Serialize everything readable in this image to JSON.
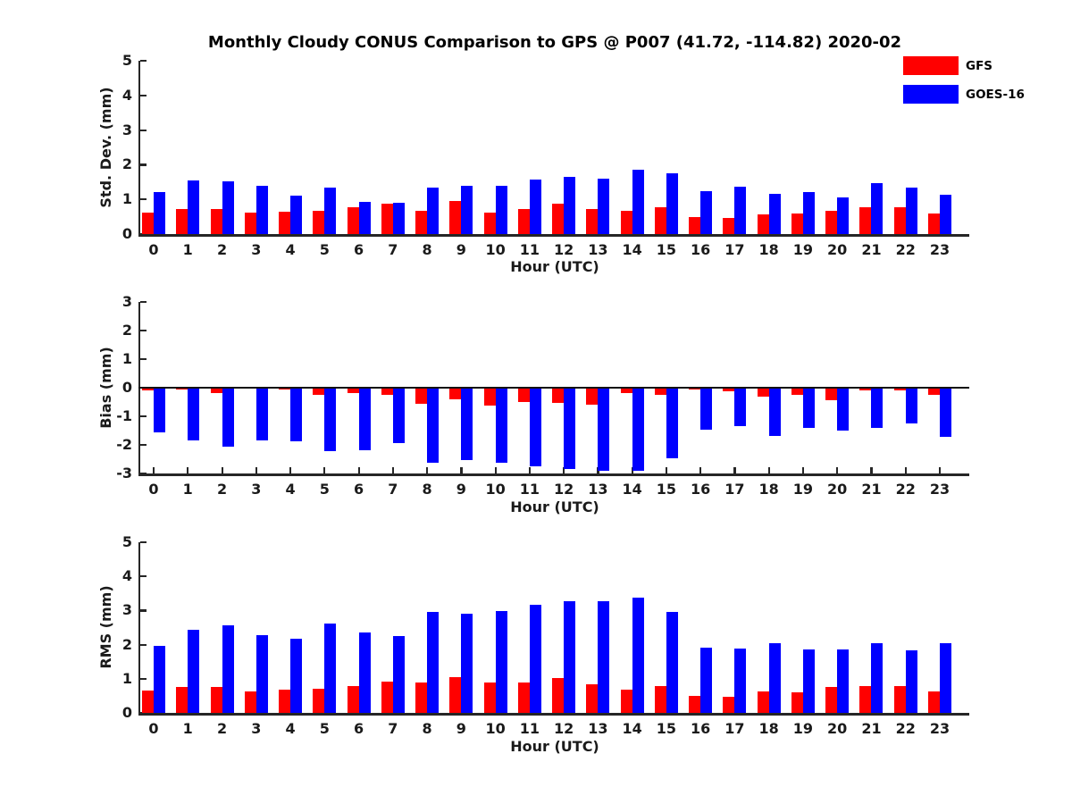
{
  "page": {
    "title": "Monthly Cloudy CONUS Comparison to GPS @ P007 (41.72, -114.82) 2020-02"
  },
  "legend": {
    "position": "top-right",
    "items": [
      {
        "label": "GFS",
        "color": "#ff0000"
      },
      {
        "label": "GOES-16",
        "color": "#0000ff"
      }
    ]
  },
  "colors": {
    "gfs": "#ff0000",
    "goes16": "#0000ff",
    "axis": "#262626",
    "background": "#ffffff"
  },
  "chart_data": [
    {
      "type": "bar",
      "name": "std-dev",
      "title": "",
      "ylabel": "Std. Dev. (mm)",
      "xlabel": "Hour (UTC)",
      "ylim": [
        0,
        5
      ],
      "yticks": [
        0,
        1,
        2,
        3,
        4,
        5
      ],
      "grid": false,
      "categories": [
        0,
        1,
        2,
        3,
        4,
        5,
        6,
        7,
        8,
        9,
        10,
        11,
        12,
        13,
        14,
        15,
        16,
        17,
        18,
        19,
        20,
        21,
        22,
        23
      ],
      "series": [
        {
          "name": "GFS",
          "color": "#ff0000",
          "values": [
            0.63,
            0.72,
            0.72,
            0.63,
            0.65,
            0.66,
            0.77,
            0.88,
            0.68,
            0.95,
            0.63,
            0.72,
            0.88,
            0.71,
            0.67,
            0.78,
            0.5,
            0.47,
            0.57,
            0.59,
            0.66,
            0.78,
            0.77,
            0.59
          ]
        },
        {
          "name": "GOES-16",
          "color": "#0000ff",
          "values": [
            1.2,
            1.55,
            1.52,
            1.4,
            1.1,
            1.35,
            0.92,
            0.9,
            1.33,
            1.38,
            1.38,
            1.58,
            1.65,
            1.6,
            1.85,
            1.75,
            1.25,
            1.36,
            1.16,
            1.2,
            1.06,
            1.47,
            1.35,
            1.13
          ]
        }
      ]
    },
    {
      "type": "bar",
      "name": "bias",
      "title": "",
      "ylabel": "Bias (mm)",
      "xlabel": "Hour (UTC)",
      "ylim": [
        -3,
        3
      ],
      "yticks": [
        -3,
        -2,
        -1,
        0,
        1,
        2,
        3
      ],
      "grid": false,
      "zero_line": true,
      "categories": [
        0,
        1,
        2,
        3,
        4,
        5,
        6,
        7,
        8,
        9,
        10,
        11,
        12,
        13,
        14,
        15,
        16,
        17,
        18,
        19,
        20,
        21,
        22,
        23
      ],
      "series": [
        {
          "name": "GFS",
          "color": "#ff0000",
          "values": [
            -0.1,
            -0.07,
            -0.2,
            -0.04,
            -0.05,
            -0.24,
            -0.2,
            -0.26,
            -0.55,
            -0.4,
            -0.63,
            -0.5,
            -0.53,
            -0.58,
            -0.19,
            -0.24,
            -0.06,
            -0.14,
            -0.31,
            -0.26,
            -0.43,
            -0.1,
            -0.1,
            -0.24
          ]
        },
        {
          "name": "GOES-16",
          "color": "#0000ff",
          "values": [
            -1.57,
            -1.85,
            -2.05,
            -1.85,
            -1.88,
            -2.22,
            -2.2,
            -1.95,
            -2.62,
            -2.53,
            -2.62,
            -2.74,
            -2.85,
            -2.92,
            -2.9,
            -2.47,
            -1.47,
            -1.34,
            -1.7,
            -1.42,
            -1.5,
            -1.42,
            -1.26,
            -1.72
          ]
        }
      ]
    },
    {
      "type": "bar",
      "name": "rms",
      "title": "",
      "ylabel": "RMS (mm)",
      "xlabel": "Hour (UTC)",
      "ylim": [
        0,
        5
      ],
      "yticks": [
        0,
        1,
        2,
        3,
        4,
        5
      ],
      "grid": false,
      "categories": [
        0,
        1,
        2,
        3,
        4,
        5,
        6,
        7,
        8,
        9,
        10,
        11,
        12,
        13,
        14,
        15,
        16,
        17,
        18,
        19,
        20,
        21,
        22,
        23
      ],
      "series": [
        {
          "name": "GFS",
          "color": "#ff0000",
          "values": [
            0.66,
            0.75,
            0.75,
            0.64,
            0.68,
            0.71,
            0.79,
            0.92,
            0.9,
            1.05,
            0.89,
            0.9,
            1.02,
            0.85,
            0.67,
            0.78,
            0.5,
            0.47,
            0.62,
            0.61,
            0.75,
            0.78,
            0.78,
            0.62
          ]
        },
        {
          "name": "GOES-16",
          "color": "#0000ff",
          "values": [
            1.97,
            2.44,
            2.56,
            2.28,
            2.16,
            2.62,
            2.36,
            2.26,
            2.95,
            2.91,
            2.98,
            3.17,
            3.26,
            3.26,
            3.38,
            2.97,
            1.9,
            1.89,
            2.05,
            1.86,
            1.86,
            2.05,
            1.83,
            2.04
          ]
        }
      ]
    }
  ]
}
